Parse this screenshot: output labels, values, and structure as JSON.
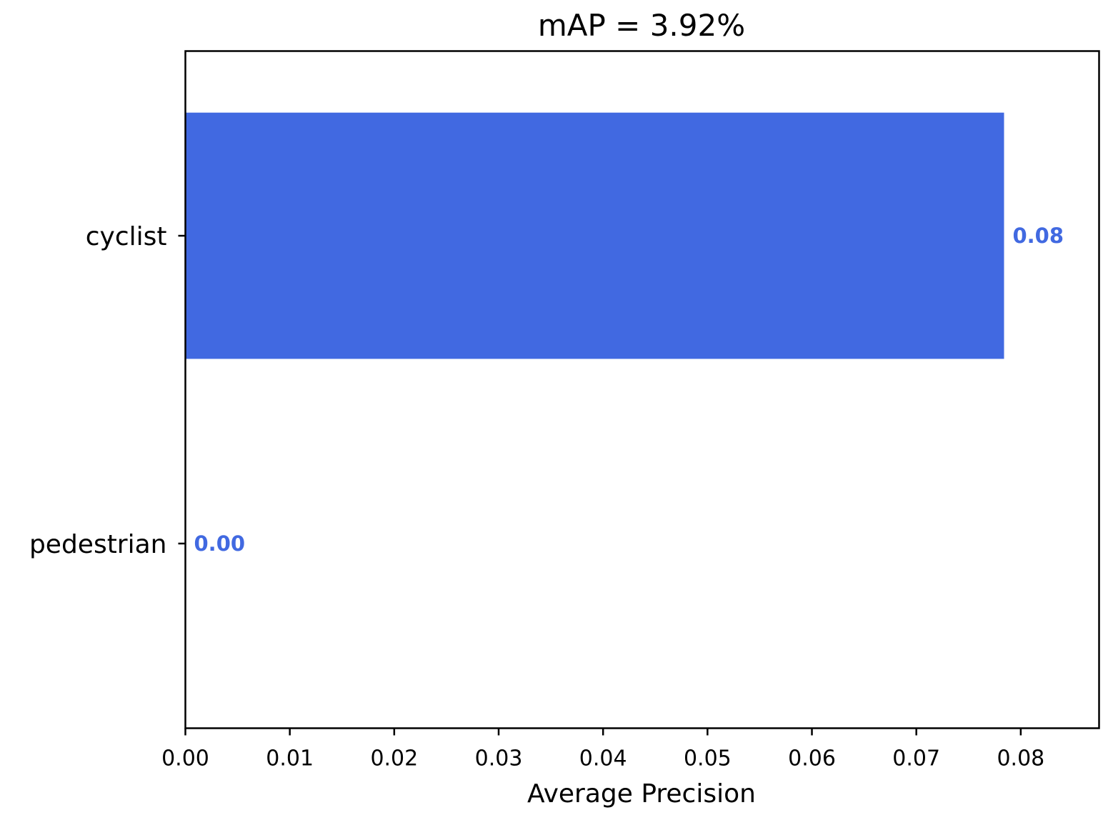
{
  "chart_data": {
    "type": "bar",
    "orientation": "horizontal",
    "title": "mAP = 3.92%",
    "xlabel": "Average Precision",
    "ylabel": "",
    "categories": [
      "cyclist",
      "pedestrian"
    ],
    "values": [
      0.0784,
      0.0
    ],
    "data_labels": [
      "0.08",
      "0.00"
    ],
    "xlim": [
      0.0,
      0.0875
    ],
    "xticks": [
      0.0,
      0.01,
      0.02,
      0.03,
      0.04,
      0.05,
      0.06,
      0.07,
      0.08
    ],
    "xtick_labels": [
      "0.00",
      "0.01",
      "0.02",
      "0.03",
      "0.04",
      "0.05",
      "0.06",
      "0.07",
      "0.08"
    ],
    "bar_color": "#4169E1",
    "label_color": "#4169E1",
    "grid": false,
    "legend": "none"
  }
}
